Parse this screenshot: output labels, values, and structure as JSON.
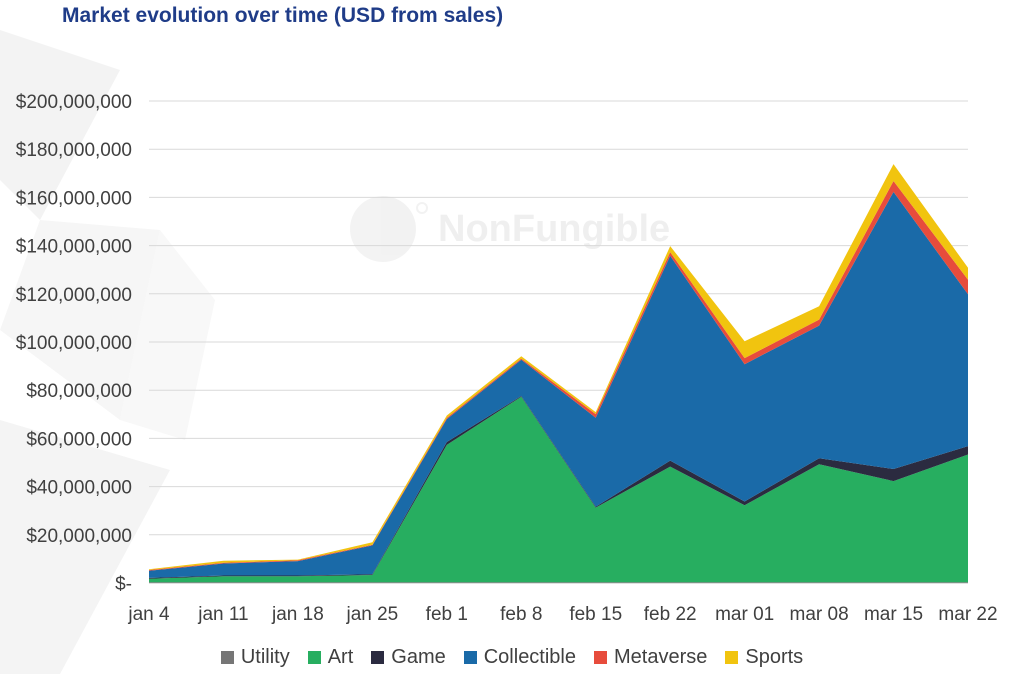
{
  "chart_data": {
    "type": "area",
    "stacked": true,
    "title": "Market evolution over time (USD from sales)",
    "watermark": "NonFungible",
    "categories": [
      "jan 4",
      "jan 11",
      "jan 18",
      "jan 25",
      "feb 1",
      "feb 8",
      "feb 15",
      "feb 22",
      "mar 01",
      "mar 08",
      "mar 15",
      "mar 22"
    ],
    "y_ticks": [
      "$-",
      "$20,000,000",
      "$40,000,000",
      "$60,000,000",
      "$80,000,000",
      "$100,000,000",
      "$120,000,000",
      "$140,000,000",
      "$160,000,000",
      "$180,000,000",
      "$200,000,000"
    ],
    "ylim": [
      0,
      200000000
    ],
    "grid": true,
    "legend_position": "bottom",
    "series": [
      {
        "name": "Utility",
        "color": "#767676",
        "values": [
          300000,
          300000,
          300000,
          300000,
          300000,
          300000,
          300000,
          300000,
          300000,
          300000,
          300000,
          300000
        ]
      },
      {
        "name": "Art",
        "color": "#27ae60",
        "values": [
          1500000,
          2500000,
          2500000,
          3000000,
          57000000,
          77000000,
          31000000,
          48000000,
          32000000,
          49000000,
          42000000,
          53000000
        ]
      },
      {
        "name": "Game",
        "color": "#2b2b40",
        "values": [
          300000,
          300000,
          300000,
          300000,
          1200000,
          300000,
          300000,
          2500000,
          1500000,
          2500000,
          5000000,
          3500000
        ]
      },
      {
        "name": "Collectible",
        "color": "#1a6aa8",
        "values": [
          3000000,
          5000000,
          6000000,
          12000000,
          9500000,
          15000000,
          37000000,
          85000000,
          57000000,
          55000000,
          115000000,
          63000000
        ]
      },
      {
        "name": "Metaverse",
        "color": "#e74c3c",
        "values": [
          300000,
          300000,
          300000,
          300000,
          500000,
          500000,
          1500000,
          1500000,
          2500000,
          2500000,
          4500000,
          6000000
        ]
      },
      {
        "name": "Sports",
        "color": "#f1c40f",
        "values": [
          300000,
          800000,
          300000,
          1000000,
          1000000,
          1000000,
          800000,
          2500000,
          7000000,
          5500000,
          7000000,
          5000000
        ]
      }
    ]
  }
}
